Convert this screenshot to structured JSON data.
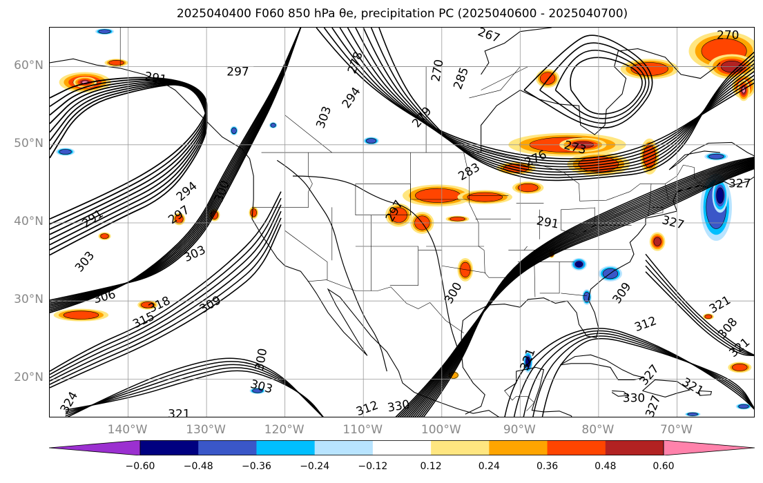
{
  "title": "2025040400 F060 850 hPa θe, precipitation PC (2025040600 - 2025040700)",
  "map": {
    "projection": "plate-carree",
    "extent": {
      "lon_min": -150,
      "lon_max": -60,
      "lat_min": 15,
      "lat_max": 65
    },
    "gridlines": true,
    "lat_ticks": [
      {
        "value": 20,
        "label": "20°N"
      },
      {
        "value": 30,
        "label": "30°N"
      },
      {
        "value": 40,
        "label": "40°N"
      },
      {
        "value": 50,
        "label": "50°N"
      },
      {
        "value": 60,
        "label": "60°N"
      }
    ],
    "lon_ticks": [
      {
        "value": -140,
        "label": "140°W"
      },
      {
        "value": -130,
        "label": "130°W"
      },
      {
        "value": -120,
        "label": "120°W"
      },
      {
        "value": -110,
        "label": "110°W"
      },
      {
        "value": -100,
        "label": "100°W"
      },
      {
        "value": -90,
        "label": "90°W"
      },
      {
        "value": -80,
        "label": "80°W"
      },
      {
        "value": -70,
        "label": "70°W"
      }
    ],
    "contour_labels": [
      {
        "text": "291",
        "lon": -136.5,
        "lat": 58.5,
        "rot": 10
      },
      {
        "text": "297",
        "lon": -126,
        "lat": 59.3,
        "rot": 0
      },
      {
        "text": "291",
        "lon": -144.5,
        "lat": 40.5,
        "rot": -35
      },
      {
        "text": "294",
        "lon": -132.5,
        "lat": 44,
        "rot": -40
      },
      {
        "text": "297",
        "lon": -133.5,
        "lat": 41,
        "rot": -35
      },
      {
        "text": "300",
        "lon": -128,
        "lat": 44,
        "rot": -70
      },
      {
        "text": "303",
        "lon": -145.5,
        "lat": 35,
        "rot": -50
      },
      {
        "text": "303",
        "lon": -131.5,
        "lat": 36,
        "rot": -25
      },
      {
        "text": "306",
        "lon": -143,
        "lat": 30.5,
        "rot": -15
      },
      {
        "text": "315",
        "lon": -138,
        "lat": 27.5,
        "rot": -25
      },
      {
        "text": "318",
        "lon": -136,
        "lat": 29.5,
        "rot": -25
      },
      {
        "text": "309",
        "lon": -129.5,
        "lat": 29.5,
        "rot": -30
      },
      {
        "text": "300",
        "lon": -123,
        "lat": 22.5,
        "rot": -80
      },
      {
        "text": "303",
        "lon": -123,
        "lat": 19,
        "rot": 15
      },
      {
        "text": "324",
        "lon": -147.5,
        "lat": 17,
        "rot": -60
      },
      {
        "text": "321",
        "lon": -133.5,
        "lat": 15.5,
        "rot": 0
      },
      {
        "text": "303",
        "lon": -115,
        "lat": 53.5,
        "rot": -70
      },
      {
        "text": "294",
        "lon": -111.5,
        "lat": 56,
        "rot": -55
      },
      {
        "text": "278",
        "lon": -111,
        "lat": 60.5,
        "rot": -70
      },
      {
        "text": "279",
        "lon": -102.5,
        "lat": 53.5,
        "rot": -50
      },
      {
        "text": "270",
        "lon": -100.5,
        "lat": 59.5,
        "rot": -80
      },
      {
        "text": "285",
        "lon": -97.5,
        "lat": 58.5,
        "rot": -70
      },
      {
        "text": "267",
        "lon": -94,
        "lat": 64,
        "rot": 20
      },
      {
        "text": "270",
        "lon": -63.5,
        "lat": 64,
        "rot": 0
      },
      {
        "text": "273",
        "lon": -83,
        "lat": 49.6,
        "rot": 15
      },
      {
        "text": "276",
        "lon": -88,
        "lat": 48.2,
        "rot": -25
      },
      {
        "text": "283",
        "lon": -96.5,
        "lat": 46.5,
        "rot": -30
      },
      {
        "text": "297",
        "lon": -106,
        "lat": 41.5,
        "rot": -60
      },
      {
        "text": "291",
        "lon": -86.5,
        "lat": 40,
        "rot": 10
      },
      {
        "text": "327",
        "lon": -70.5,
        "lat": 40,
        "rot": 15
      },
      {
        "text": "300",
        "lon": -98.5,
        "lat": 31,
        "rot": -60
      },
      {
        "text": "309",
        "lon": -77,
        "lat": 31,
        "rot": -55
      },
      {
        "text": "312",
        "lon": -74,
        "lat": 27,
        "rot": -20
      },
      {
        "text": "321",
        "lon": -64.5,
        "lat": 29.5,
        "rot": -30
      },
      {
        "text": "308",
        "lon": -63.5,
        "lat": 26.5,
        "rot": -50
      },
      {
        "text": "321",
        "lon": -62,
        "lat": 24,
        "rot": -40
      },
      {
        "text": "327",
        "lon": -73.5,
        "lat": 20.5,
        "rot": -50
      },
      {
        "text": "321",
        "lon": -68,
        "lat": 19,
        "rot": 30
      },
      {
        "text": "330",
        "lon": -75.5,
        "lat": 17.5,
        "rot": 0
      },
      {
        "text": "327",
        "lon": -73,
        "lat": 16.5,
        "rot": -70
      },
      {
        "text": "312",
        "lon": -109.5,
        "lat": 16.2,
        "rot": -20
      },
      {
        "text": "330",
        "lon": -105.5,
        "lat": 16.5,
        "rot": -10
      },
      {
        "text": "321",
        "lon": -89,
        "lat": 22.5,
        "rot": -70
      },
      {
        "text": "327",
        "lon": -62,
        "lat": 45,
        "rot": 0
      }
    ]
  },
  "colorbar": {
    "levels": [
      -0.72,
      -0.6,
      -0.48,
      -0.36,
      -0.24,
      -0.12,
      0.12,
      0.24,
      0.36,
      0.48,
      0.6,
      0.72
    ],
    "colors": [
      "#9b30d0",
      "#000080",
      "#3a57c8",
      "#00bfff",
      "#b8e4ff",
      "#ffffff",
      "#ffe680",
      "#ffa500",
      "#ff4500",
      "#b22222",
      "#ff82ab"
    ],
    "tick_labels": [
      "−0.60",
      "−0.48",
      "−0.36",
      "−0.24",
      "−0.12",
      "0.12",
      "0.24",
      "0.36",
      "0.48",
      "0.60"
    ],
    "extend": "both"
  },
  "precip_blobs": [
    {
      "lon": -145.5,
      "lat": 58,
      "rx": 3.3,
      "ry": 1.3,
      "level": 4
    },
    {
      "lon": -145.5,
      "lat": 58,
      "rx": 1.5,
      "ry": 0.7,
      "level": 5
    },
    {
      "lon": -84,
      "lat": 50,
      "rx": 7.5,
      "ry": 1.5,
      "level": 3
    },
    {
      "lon": -80,
      "lat": 47.5,
      "rx": 4,
      "ry": 1.5,
      "level": 3
    },
    {
      "lon": -82,
      "lat": 50,
      "rx": 3,
      "ry": 0.9,
      "level": 4
    },
    {
      "lon": -90.5,
      "lat": 47,
      "rx": 2.5,
      "ry": 0.8,
      "level": 3
    },
    {
      "lon": -100.5,
      "lat": 43.5,
      "rx": 4.5,
      "ry": 1.4,
      "level": 3
    },
    {
      "lon": -94.5,
      "lat": 43.3,
      "rx": 3.5,
      "ry": 0.9,
      "level": 3
    },
    {
      "lon": -89,
      "lat": 44.5,
      "rx": 2,
      "ry": 0.8,
      "level": 3
    },
    {
      "lon": -105.5,
      "lat": 41,
      "rx": 1.7,
      "ry": 1.5,
      "level": 3
    },
    {
      "lon": -102.5,
      "lat": 40,
      "rx": 1.5,
      "ry": 1.4,
      "level": 3
    },
    {
      "lon": -98,
      "lat": 40.5,
      "rx": 1.5,
      "ry": 0.4,
      "level": 3
    },
    {
      "lon": -97,
      "lat": 34,
      "rx": 1.0,
      "ry": 1.5,
      "level": 3
    },
    {
      "lon": -86.5,
      "lat": 58.5,
      "rx": 1.5,
      "ry": 1.2,
      "level": 3
    },
    {
      "lon": -73.5,
      "lat": 59.7,
      "rx": 3.7,
      "ry": 1.3,
      "level": 3
    },
    {
      "lon": -64,
      "lat": 62,
      "rx": 4.5,
      "ry": 2.5,
      "level": 3
    },
    {
      "lon": -63,
      "lat": 60,
      "rx": 3,
      "ry": 1.6,
      "level": 4
    },
    {
      "lon": -61.5,
      "lat": 57.5,
      "rx": 1.5,
      "ry": 1.6,
      "level": 4
    },
    {
      "lon": -61.5,
      "lat": 57,
      "rx": 0.8,
      "ry": 1.4,
      "level": 5
    },
    {
      "lon": -73.5,
      "lat": 48.5,
      "rx": 1.2,
      "ry": 2.3,
      "level": 3
    },
    {
      "lon": -72.5,
      "lat": 37.6,
      "rx": 1.0,
      "ry": 1.2,
      "level": 4
    },
    {
      "lon": -65,
      "lat": 42,
      "rx": 2.0,
      "ry": 4.3,
      "level": -3
    },
    {
      "lon": -64.5,
      "lat": 43.5,
      "rx": 1.0,
      "ry": 2.2,
      "level": -4
    },
    {
      "lon": -146,
      "lat": 28.2,
      "rx": 3.5,
      "ry": 0.8,
      "level": 3
    },
    {
      "lon": -137.5,
      "lat": 29.5,
      "rx": 1.3,
      "ry": 0.6,
      "level": 3
    },
    {
      "lon": -133.5,
      "lat": 40.5,
      "rx": 0.8,
      "ry": 0.8,
      "level": 3
    },
    {
      "lon": -129,
      "lat": 41,
      "rx": 0.7,
      "ry": 0.8,
      "level": 3
    },
    {
      "lon": -124,
      "lat": 41.3,
      "rx": 0.6,
      "ry": 0.8,
      "level": 3
    },
    {
      "lon": -143,
      "lat": 38.3,
      "rx": 0.8,
      "ry": 0.5,
      "level": 3
    },
    {
      "lon": -141.5,
      "lat": 60.5,
      "rx": 1.5,
      "ry": 0.5,
      "level": 3
    },
    {
      "lon": -143,
      "lat": 64.5,
      "rx": 1.2,
      "ry": 0.4,
      "level": -3
    },
    {
      "lon": -148,
      "lat": 49.1,
      "rx": 1.2,
      "ry": 0.5,
      "level": -3
    },
    {
      "lon": -78.5,
      "lat": 33.5,
      "rx": 1.5,
      "ry": 1.0,
      "level": -3
    },
    {
      "lon": -82.5,
      "lat": 34.7,
      "rx": 1.0,
      "ry": 0.8,
      "level": -4
    },
    {
      "lon": -81.5,
      "lat": 30.5,
      "rx": 0.6,
      "ry": 1.0,
      "level": -3
    },
    {
      "lon": -89,
      "lat": 22.2,
      "rx": 0.6,
      "ry": 1.4,
      "level": -4
    },
    {
      "lon": -123.5,
      "lat": 18.5,
      "rx": 1.0,
      "ry": 0.4,
      "level": -3
    },
    {
      "lon": -109,
      "lat": 50.5,
      "rx": 1.0,
      "ry": 0.5,
      "level": -3
    },
    {
      "lon": -126.5,
      "lat": 51.8,
      "rx": 0.5,
      "ry": 0.6,
      "level": -3
    },
    {
      "lon": -121.5,
      "lat": 52.5,
      "rx": 0.5,
      "ry": 0.4,
      "level": -3
    },
    {
      "lon": -65,
      "lat": 48.5,
      "rx": 1.5,
      "ry": 0.5,
      "level": -3
    },
    {
      "lon": -61.5,
      "lat": 16.5,
      "rx": 1.0,
      "ry": 0.4,
      "level": -3
    },
    {
      "lon": -68,
      "lat": 15.5,
      "rx": 1.0,
      "ry": 0.3,
      "level": -3
    },
    {
      "lon": -62,
      "lat": 21.5,
      "rx": 1.5,
      "ry": 0.7,
      "level": 3
    },
    {
      "lon": -66,
      "lat": 28,
      "rx": 0.7,
      "ry": 0.4,
      "level": 3
    },
    {
      "lon": -86,
      "lat": 36,
      "rx": 0.4,
      "ry": 0.5,
      "level": 3
    },
    {
      "lon": -98.5,
      "lat": 20.5,
      "rx": 0.7,
      "ry": 0.5,
      "level": 2
    }
  ]
}
